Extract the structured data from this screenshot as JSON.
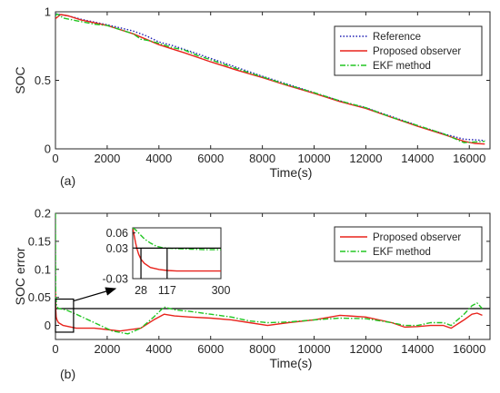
{
  "chart_data": [
    {
      "type": "line",
      "panel_label": "(a)",
      "xlabel": "Time(s)",
      "ylabel": "SOC",
      "xlim": [
        0,
        16800
      ],
      "ylim": [
        0,
        1
      ],
      "xticks": [
        0,
        2000,
        4000,
        6000,
        8000,
        10000,
        12000,
        14000,
        16000
      ],
      "yticks": [
        0,
        0.5,
        1
      ],
      "ytick_labels": [
        "0",
        "0.5",
        "1"
      ],
      "legend_position": "top-right",
      "series": [
        {
          "name": "Reference",
          "color": "#1f1fb4",
          "style": "dotted",
          "x": [
            0,
            500,
            1000,
            2000,
            3000,
            3500,
            4000,
            4500,
            5000,
            6000,
            7000,
            8000,
            9000,
            10000,
            11000,
            12000,
            13000,
            14000,
            15000,
            15800,
            16300,
            16600
          ],
          "y": [
            0.985,
            0.97,
            0.945,
            0.905,
            0.86,
            0.825,
            0.78,
            0.755,
            0.725,
            0.66,
            0.595,
            0.53,
            0.47,
            0.41,
            0.35,
            0.3,
            0.235,
            0.17,
            0.11,
            0.07,
            0.065,
            0.06
          ]
        },
        {
          "name": "Proposed observer",
          "color": "#e8231c",
          "style": "solid",
          "x": [
            0,
            200,
            500,
            1000,
            2000,
            3000,
            3500,
            4000,
            4500,
            5000,
            6000,
            7000,
            8000,
            9000,
            10000,
            11000,
            12000,
            13000,
            14000,
            15000,
            15800,
            16200,
            16600
          ],
          "y": [
            0.95,
            0.98,
            0.97,
            0.94,
            0.9,
            0.84,
            0.8,
            0.76,
            0.73,
            0.7,
            0.635,
            0.575,
            0.52,
            0.46,
            0.405,
            0.345,
            0.295,
            0.23,
            0.165,
            0.105,
            0.055,
            0.04,
            0.035
          ]
        },
        {
          "name": "EKF method",
          "color": "#22c522",
          "style": "dashdot",
          "x": [
            0,
            60,
            300,
            800,
            1500,
            2000,
            2500,
            3000,
            3300,
            3600,
            4000,
            4500,
            5000,
            5500,
            6000,
            7000,
            8000,
            9000,
            10000,
            11000,
            12000,
            13000,
            14000,
            15000,
            15800,
            16200,
            16600
          ],
          "y": [
            0.97,
            0.985,
            0.955,
            0.935,
            0.91,
            0.9,
            0.87,
            0.84,
            0.8,
            0.79,
            0.77,
            0.74,
            0.72,
            0.68,
            0.65,
            0.585,
            0.525,
            0.465,
            0.41,
            0.35,
            0.3,
            0.23,
            0.17,
            0.11,
            0.045,
            0.05,
            0.055
          ]
        }
      ]
    },
    {
      "type": "line",
      "panel_label": "(b)",
      "xlabel": "Time(s)",
      "ylabel": "SOC error",
      "xlim": [
        0,
        16800
      ],
      "ylim": [
        -0.025,
        0.2
      ],
      "xticks": [
        0,
        2000,
        4000,
        6000,
        8000,
        10000,
        12000,
        14000,
        16000
      ],
      "yticks": [
        0,
        0.05,
        0.1,
        0.15,
        0.2
      ],
      "ytick_labels": [
        "0",
        "0.05",
        "0.1",
        "0.15",
        "0.2"
      ],
      "legend_position": "top-right",
      "reference_line_y": 0.03,
      "zoom_box": {
        "x": [
          0,
          700
        ],
        "y": [
          -0.012,
          0.047
        ]
      },
      "series": [
        {
          "name": "Proposed observer",
          "color": "#e8231c",
          "style": "solid",
          "x": [
            0,
            10,
            28,
            60,
            117,
            300,
            800,
            1500,
            2500,
            3300,
            3800,
            4200,
            4600,
            5200,
            6000,
            6800,
            7500,
            8200,
            9000,
            10000,
            11000,
            12000,
            13000,
            13500,
            14000,
            14500,
            15000,
            15300,
            15800,
            16100,
            16300,
            16500
          ],
          "y": [
            0.06,
            0.03,
            0.015,
            0.01,
            0.005,
            0.0,
            -0.005,
            -0.005,
            -0.01,
            -0.005,
            0.01,
            0.02,
            0.017,
            0.015,
            0.013,
            0.01,
            0.005,
            0.0,
            0.005,
            0.01,
            0.018,
            0.015,
            0.005,
            -0.003,
            -0.002,
            0.0,
            0.0,
            -0.005,
            0.01,
            0.02,
            0.022,
            0.018
          ]
        },
        {
          "name": "EKF method",
          "color": "#22c522",
          "style": "dashdot",
          "x": [
            0,
            10,
            40,
            117,
            400,
            800,
            1500,
            2200,
            2800,
            3300,
            3800,
            4200,
            4600,
            5200,
            6000,
            6800,
            7500,
            8200,
            9000,
            10000,
            11000,
            12000,
            13000,
            13500,
            14000,
            14500,
            15000,
            15300,
            15800,
            16100,
            16300,
            16500
          ],
          "y": [
            0.2,
            0.06,
            0.035,
            0.03,
            0.028,
            0.02,
            0.005,
            -0.01,
            -0.015,
            -0.005,
            0.015,
            0.033,
            0.028,
            0.025,
            0.02,
            0.015,
            0.008,
            0.005,
            0.006,
            0.01,
            0.013,
            0.012,
            0.005,
            0.0,
            0.0,
            0.005,
            0.005,
            0.0,
            0.02,
            0.035,
            0.04,
            0.03
          ]
        }
      ]
    },
    {
      "type": "line",
      "role": "inset",
      "xlim": [
        0,
        300
      ],
      "ylim": [
        -0.03,
        0.07
      ],
      "xticks": [
        28,
        117,
        300
      ],
      "yticks": [
        0.06,
        0.03,
        -0.03
      ],
      "ytick_labels": [
        "0.06",
        "0.03",
        "-0.03"
      ],
      "reference_line_y": 0.03,
      "marker_lines_x": [
        28,
        117
      ],
      "series": [
        {
          "name": "Proposed observer",
          "color": "#e8231c",
          "style": "solid",
          "x": [
            0,
            5,
            10,
            15,
            20,
            28,
            40,
            60,
            90,
            117,
            150,
            200,
            250,
            300
          ],
          "y": [
            0.07,
            0.055,
            0.04,
            0.028,
            0.018,
            0.008,
            0.0,
            -0.008,
            -0.012,
            -0.014,
            -0.015,
            -0.015,
            -0.015,
            -0.015
          ]
        },
        {
          "name": "EKF method",
          "color": "#22c522",
          "style": "dashdot",
          "x": [
            0,
            10,
            20,
            28,
            40,
            60,
            80,
            100,
            117,
            150,
            200,
            250,
            300
          ],
          "y": [
            0.07,
            0.066,
            0.06,
            0.055,
            0.048,
            0.04,
            0.034,
            0.031,
            0.03,
            0.029,
            0.028,
            0.027,
            0.027
          ]
        }
      ]
    }
  ]
}
